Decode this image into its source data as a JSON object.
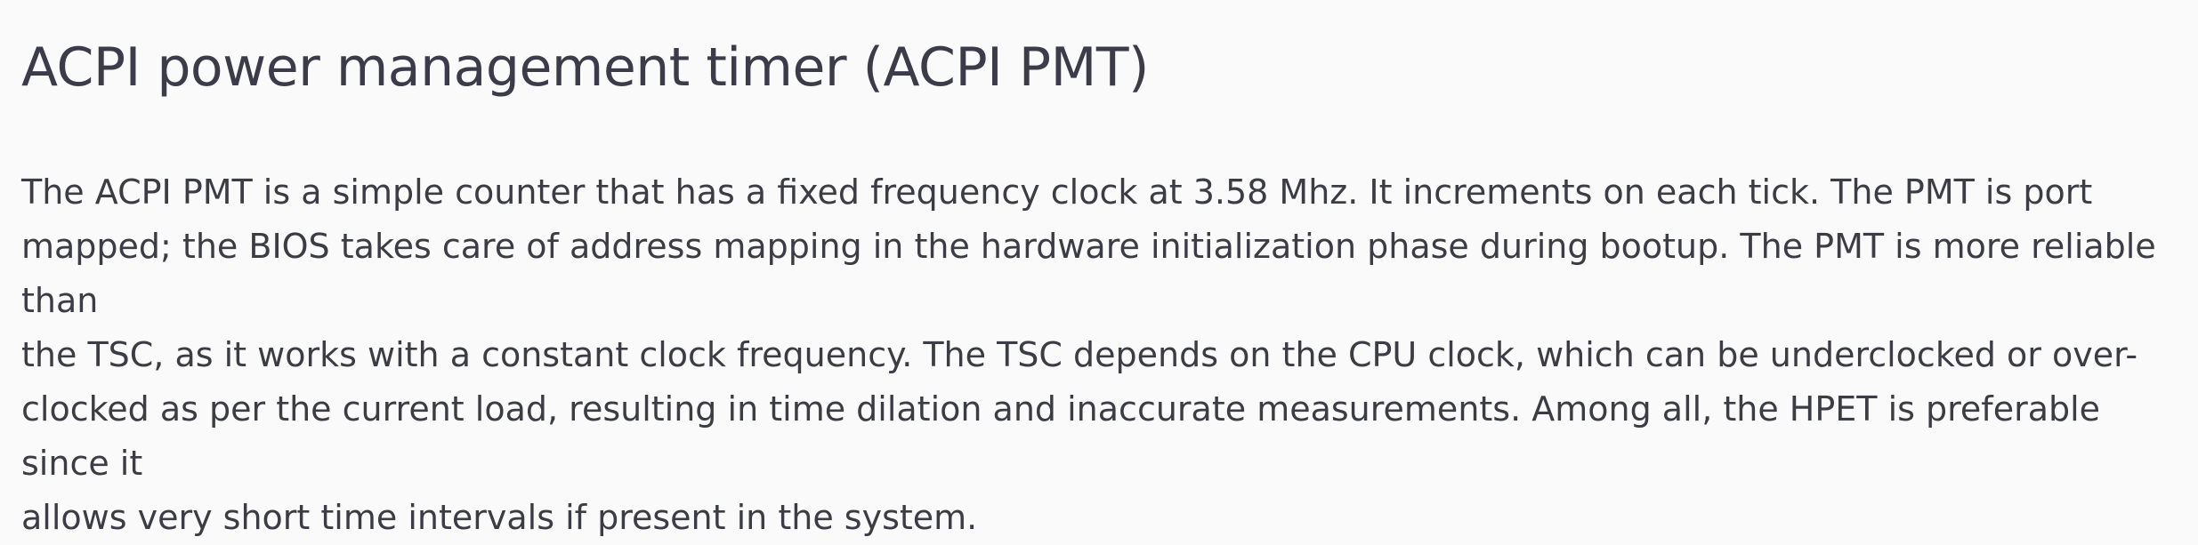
{
  "article": {
    "heading": "ACPI power management timer (ACPI PMT)",
    "paragraph_lines": [
      "The ACPI PMT is a simple counter that has a fixed frequency clock at 3.58 Mhz. It increments on each tick. The PMT is port",
      "mapped; the BIOS takes care of address mapping in the hardware initialization phase during bootup. The PMT is more reliable than",
      "the TSC, as it works with a constant clock frequency. The TSC depends on the CPU clock, which can be underclocked or over-",
      "clocked as per the current load, resulting in time dilation and inaccurate measurements. Among all, the HPET is preferable since it",
      "allows very short time intervals if present in the system."
    ]
  },
  "colors": {
    "background": "#fafafb",
    "heading_text": "#3c3b4a",
    "body_text": "#3c3c45"
  }
}
